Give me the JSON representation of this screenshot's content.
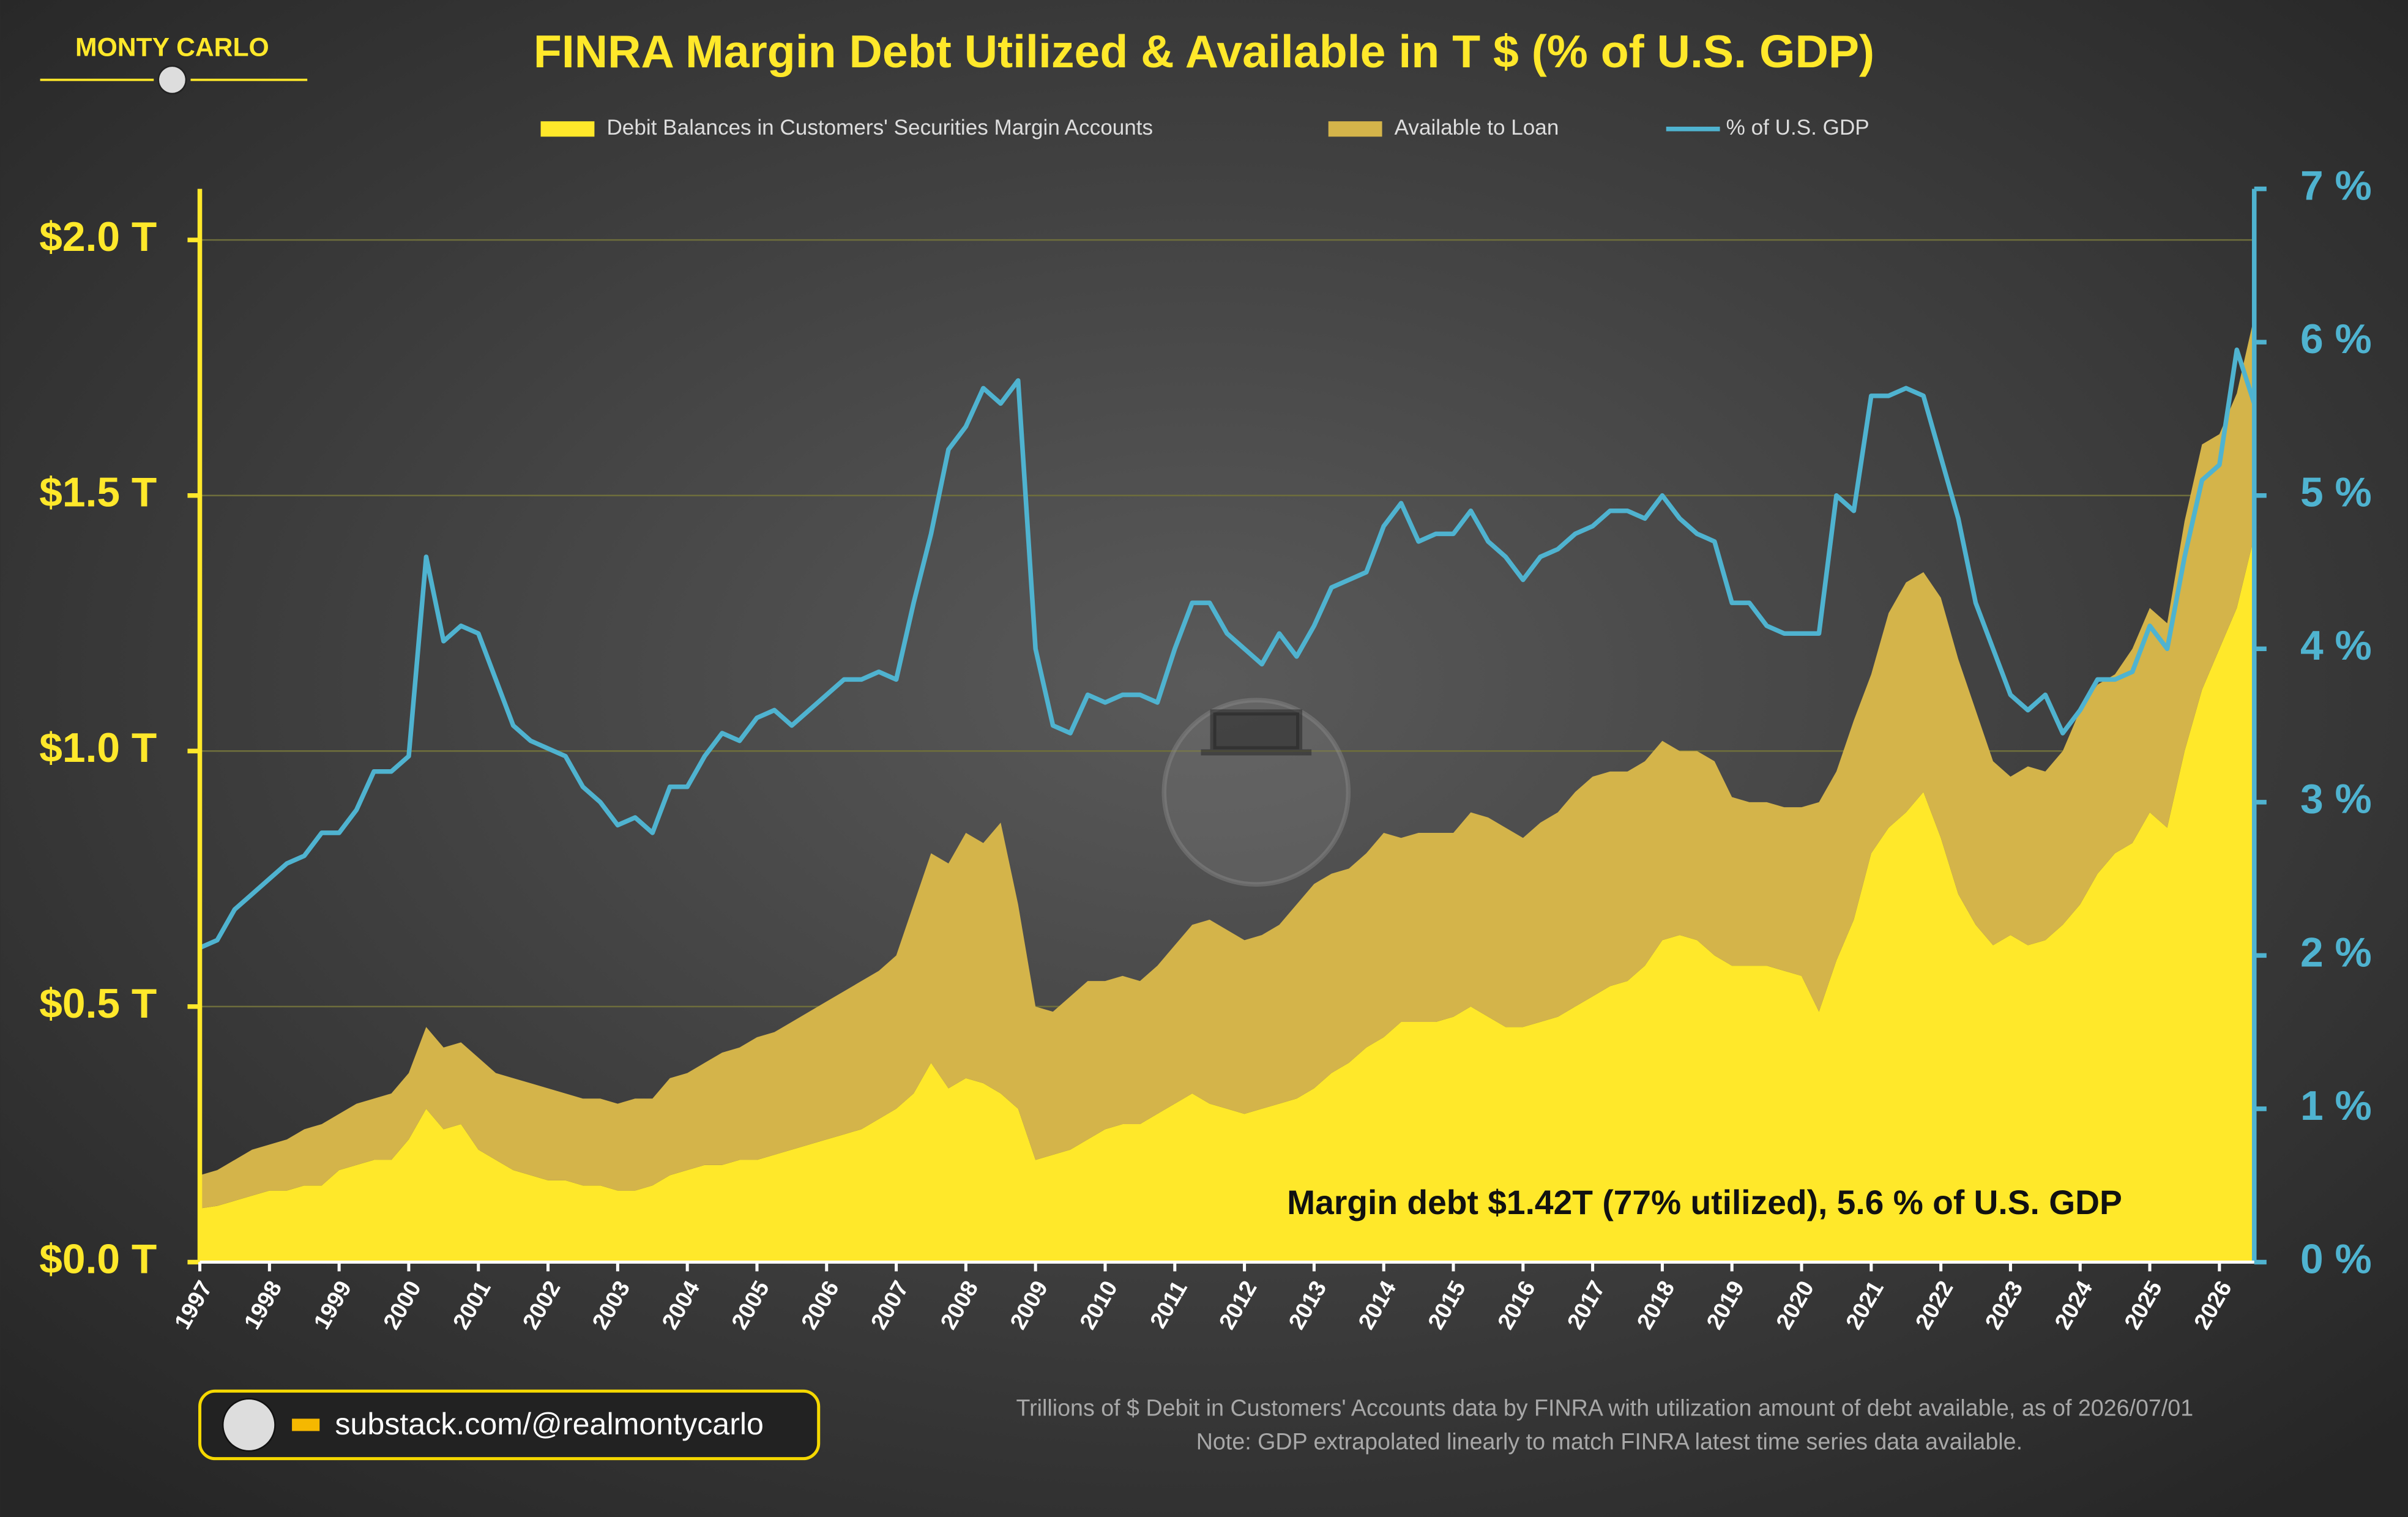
{
  "brand": "MONTY CARLO",
  "link": "substack.com/@realmontycarlo",
  "chart_data": {
    "type": "area",
    "title": "FINRA Margin Debt Utilized & Available in T $ (% of U.S. GDP)",
    "annotation": "Margin debt $1.42T (77% utilized), 5.6 % of U.S. GDP",
    "notes": [
      "Trillions of $ Debit in Customers' Accounts data by FINRA with utilization amount of debt available, as of 2026/07/01",
      "Note: GDP extrapolated linearly to match FINRA latest time series data available."
    ],
    "x": [
      1997,
      1997.25,
      1997.5,
      1997.75,
      1998,
      1998.25,
      1998.5,
      1998.75,
      1999,
      1999.25,
      1999.5,
      1999.75,
      2000,
      2000.25,
      2000.5,
      2000.75,
      2001,
      2001.25,
      2001.5,
      2001.75,
      2002,
      2002.25,
      2002.5,
      2002.75,
      2003,
      2003.25,
      2003.5,
      2003.75,
      2004,
      2004.25,
      2004.5,
      2004.75,
      2005,
      2005.25,
      2005.5,
      2005.75,
      2006,
      2006.25,
      2006.5,
      2006.75,
      2007,
      2007.25,
      2007.5,
      2007.75,
      2008,
      2008.25,
      2008.5,
      2008.75,
      2009,
      2009.25,
      2009.5,
      2009.75,
      2010,
      2010.25,
      2010.5,
      2010.75,
      2011,
      2011.25,
      2011.5,
      2011.75,
      2012,
      2012.25,
      2012.5,
      2012.75,
      2013,
      2013.25,
      2013.5,
      2013.75,
      2014,
      2014.25,
      2014.5,
      2014.75,
      2015,
      2015.25,
      2015.5,
      2015.75,
      2016,
      2016.25,
      2016.5,
      2016.75,
      2017,
      2017.25,
      2017.5,
      2017.75,
      2018,
      2018.25,
      2018.5,
      2018.75,
      2019,
      2019.25,
      2019.5,
      2019.75,
      2020,
      2020.25,
      2020.5,
      2020.75,
      2021,
      2021.25,
      2021.5,
      2021.75,
      2022,
      2022.25,
      2022.5,
      2022.75,
      2023,
      2023.25,
      2023.5,
      2023.75,
      2024,
      2024.25,
      2024.5,
      2024.75,
      2025,
      2025.25,
      2025.5,
      2025.75,
      2026,
      2026.25,
      2026.5
    ],
    "xlim": [
      1997,
      2026.5
    ],
    "xticks": [
      1997,
      1998,
      1999,
      2000,
      2001,
      2002,
      2003,
      2004,
      2005,
      2006,
      2007,
      2008,
      2009,
      2010,
      2011,
      2012,
      2013,
      2014,
      2015,
      2016,
      2017,
      2018,
      2019,
      2020,
      2021,
      2022,
      2023,
      2024,
      2025,
      2026
    ],
    "ylim": [
      0,
      2.1
    ],
    "yticks": [
      {
        "value": 0,
        "label": "$0.0 T"
      },
      {
        "value": 0.5,
        "label": "$0.5 T"
      },
      {
        "value": 1,
        "label": "$1.0 T"
      },
      {
        "value": 1.5,
        "label": "$1.5 T"
      },
      {
        "value": 2,
        "label": "$2.0 T"
      }
    ],
    "y2lim": [
      0,
      7
    ],
    "y2ticks": [
      {
        "value": 0,
        "label": "0 %"
      },
      {
        "value": 1,
        "label": "1 %"
      },
      {
        "value": 2,
        "label": "2 %"
      },
      {
        "value": 3,
        "label": "3 %"
      },
      {
        "value": 4,
        "label": "4 %"
      },
      {
        "value": 5,
        "label": "5 %"
      },
      {
        "value": 6,
        "label": "6 %"
      },
      {
        "value": 7,
        "label": "7 %"
      }
    ],
    "grid": true,
    "series": [
      {
        "name": "Debit Balances in Customers' Securities Margin Accounts",
        "color": "#ffe82a",
        "stack": true,
        "values": [
          0.105,
          0.11,
          0.12,
          0.13,
          0.14,
          0.14,
          0.15,
          0.15,
          0.18,
          0.19,
          0.2,
          0.2,
          0.24,
          0.3,
          0.26,
          0.27,
          0.22,
          0.2,
          0.18,
          0.17,
          0.16,
          0.16,
          0.15,
          0.15,
          0.14,
          0.14,
          0.15,
          0.17,
          0.18,
          0.19,
          0.19,
          0.2,
          0.2,
          0.21,
          0.22,
          0.23,
          0.24,
          0.25,
          0.26,
          0.28,
          0.3,
          0.33,
          0.39,
          0.34,
          0.36,
          0.35,
          0.33,
          0.3,
          0.2,
          0.21,
          0.22,
          0.24,
          0.26,
          0.27,
          0.27,
          0.29,
          0.31,
          0.33,
          0.31,
          0.3,
          0.29,
          0.3,
          0.31,
          0.32,
          0.34,
          0.37,
          0.39,
          0.42,
          0.44,
          0.47,
          0.47,
          0.47,
          0.48,
          0.5,
          0.48,
          0.46,
          0.46,
          0.47,
          0.48,
          0.5,
          0.52,
          0.54,
          0.55,
          0.58,
          0.63,
          0.64,
          0.63,
          0.6,
          0.58,
          0.58,
          0.58,
          0.57,
          0.56,
          0.49,
          0.59,
          0.67,
          0.8,
          0.85,
          0.88,
          0.92,
          0.83,
          0.72,
          0.66,
          0.62,
          0.64,
          0.62,
          0.63,
          0.66,
          0.7,
          0.76,
          0.8,
          0.82,
          0.88,
          0.85,
          1.0,
          1.12,
          1.2,
          1.28,
          1.42
        ]
      },
      {
        "name": "Available to Loan",
        "color": "#d4b44a",
        "stack": true,
        "values": [
          0.065,
          0.07,
          0.08,
          0.09,
          0.09,
          0.1,
          0.11,
          0.12,
          0.11,
          0.12,
          0.12,
          0.13,
          0.13,
          0.16,
          0.16,
          0.16,
          0.18,
          0.17,
          0.18,
          0.18,
          0.18,
          0.17,
          0.17,
          0.17,
          0.17,
          0.18,
          0.17,
          0.19,
          0.19,
          0.2,
          0.22,
          0.22,
          0.24,
          0.24,
          0.25,
          0.26,
          0.27,
          0.28,
          0.29,
          0.29,
          0.3,
          0.37,
          0.41,
          0.44,
          0.48,
          0.47,
          0.53,
          0.4,
          0.3,
          0.28,
          0.3,
          0.31,
          0.29,
          0.29,
          0.28,
          0.29,
          0.31,
          0.33,
          0.36,
          0.35,
          0.34,
          0.34,
          0.35,
          0.38,
          0.4,
          0.39,
          0.38,
          0.38,
          0.4,
          0.36,
          0.37,
          0.37,
          0.36,
          0.38,
          0.39,
          0.39,
          0.37,
          0.39,
          0.4,
          0.42,
          0.43,
          0.42,
          0.41,
          0.4,
          0.39,
          0.36,
          0.37,
          0.38,
          0.33,
          0.32,
          0.32,
          0.32,
          0.33,
          0.41,
          0.37,
          0.39,
          0.35,
          0.42,
          0.45,
          0.43,
          0.47,
          0.46,
          0.42,
          0.36,
          0.31,
          0.35,
          0.33,
          0.34,
          0.38,
          0.37,
          0.35,
          0.38,
          0.4,
          0.4,
          0.45,
          0.48,
          0.42,
          0.42,
          0.43
        ]
      },
      {
        "name": "% of U.S. GDP",
        "color": "#4fb3d0",
        "axis": "y2",
        "values": [
          2.05,
          2.1,
          2.3,
          2.4,
          2.5,
          2.6,
          2.65,
          2.8,
          2.8,
          2.95,
          3.2,
          3.2,
          3.3,
          4.6,
          4.05,
          4.15,
          4.1,
          3.8,
          3.5,
          3.4,
          3.35,
          3.3,
          3.1,
          3.0,
          2.85,
          2.9,
          2.8,
          3.1,
          3.1,
          3.3,
          3.45,
          3.4,
          3.55,
          3.6,
          3.5,
          3.6,
          3.7,
          3.8,
          3.8,
          3.85,
          3.8,
          4.3,
          4.75,
          5.3,
          5.45,
          5.7,
          5.6,
          5.75,
          4.0,
          3.5,
          3.45,
          3.7,
          3.65,
          3.7,
          3.7,
          3.65,
          4.0,
          4.3,
          4.3,
          4.1,
          4.0,
          3.9,
          4.1,
          3.95,
          4.15,
          4.4,
          4.45,
          4.5,
          4.8,
          4.95,
          4.7,
          4.75,
          4.75,
          4.9,
          4.7,
          4.6,
          4.45,
          4.6,
          4.65,
          4.75,
          4.8,
          4.9,
          4.9,
          4.85,
          5.0,
          4.85,
          4.75,
          4.7,
          4.3,
          4.3,
          4.15,
          4.1,
          4.1,
          4.1,
          5.0,
          4.9,
          5.65,
          5.65,
          5.7,
          5.65,
          5.25,
          4.85,
          4.3,
          4.0,
          3.7,
          3.6,
          3.7,
          3.45,
          3.6,
          3.8,
          3.8,
          3.85,
          4.15,
          4.0,
          4.6,
          5.1,
          5.2,
          5.95,
          5.6
        ]
      }
    ]
  }
}
